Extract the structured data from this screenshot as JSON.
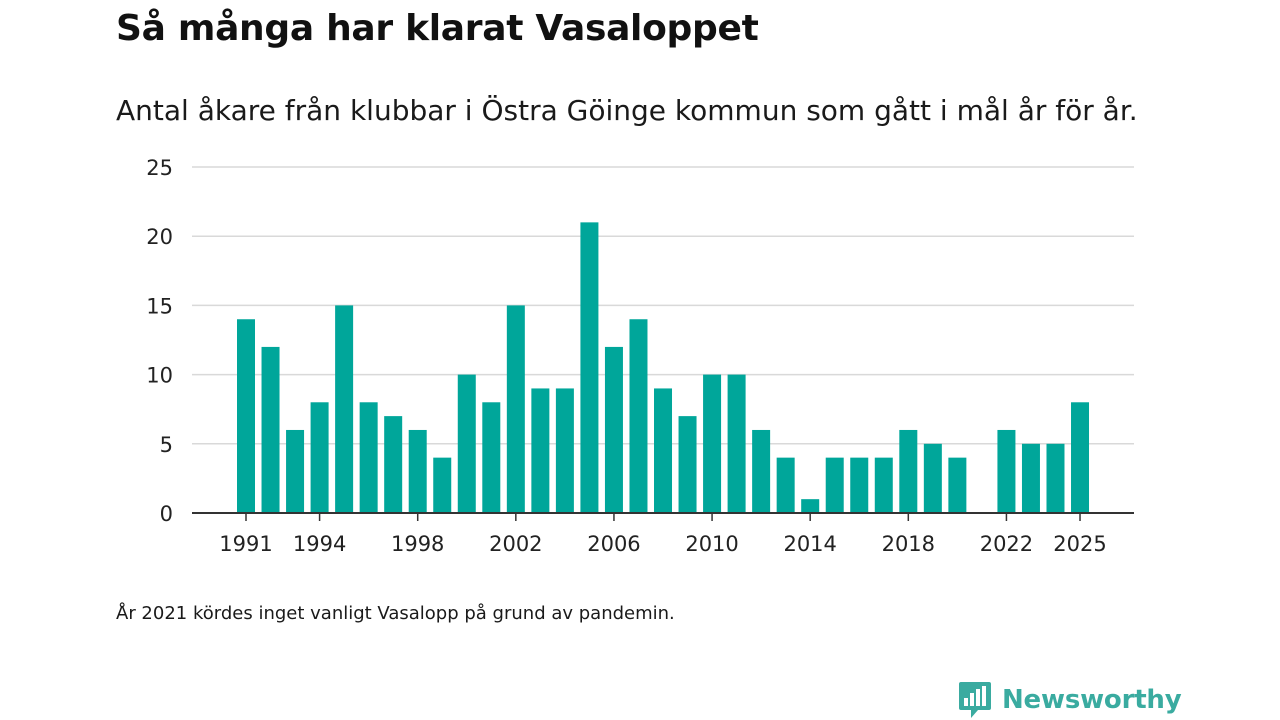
{
  "header": {
    "title": "Så många har klarat Vasaloppet",
    "subtitle": "Antal åkare från klubbar i Östra Göinge kommun som gått i mål år för år."
  },
  "footer": {
    "note": "År 2021 kördes inget vanligt Vasalopp på grund av pandemin.",
    "brand": "Newsworthy",
    "brand_icon": "newsworthy-logo-icon"
  },
  "colors": {
    "bar": "#00a69a",
    "grid": "#d9d9d9",
    "axis": "#333333",
    "brand": "#3aaba0"
  },
  "chart_data": {
    "type": "bar",
    "title": "Så många har klarat Vasaloppet",
    "xlabel": "",
    "ylabel": "",
    "ylim": [
      0,
      25
    ],
    "yticks": [
      0,
      5,
      10,
      15,
      20,
      25
    ],
    "xtick_labels": [
      "1991",
      "1994",
      "1998",
      "2002",
      "2006",
      "2010",
      "2014",
      "2018",
      "2022",
      "2025"
    ],
    "categories": [
      "1991",
      "1992",
      "1993",
      "1994",
      "1995",
      "1996",
      "1997",
      "1998",
      "1999",
      "2000",
      "2001",
      "2002",
      "2003",
      "2004",
      "2005",
      "2006",
      "2007",
      "2008",
      "2009",
      "2010",
      "2011",
      "2012",
      "2013",
      "2014",
      "2015",
      "2016",
      "2017",
      "2018",
      "2019",
      "2020",
      "2021",
      "2022",
      "2023",
      "2024",
      "2025"
    ],
    "values": [
      14,
      12,
      6,
      8,
      15,
      8,
      7,
      6,
      4,
      10,
      8,
      15,
      9,
      9,
      21,
      12,
      14,
      9,
      7,
      10,
      10,
      6,
      4,
      1,
      4,
      4,
      4,
      6,
      5,
      4,
      null,
      6,
      5,
      5,
      8
    ],
    "grid": true
  }
}
